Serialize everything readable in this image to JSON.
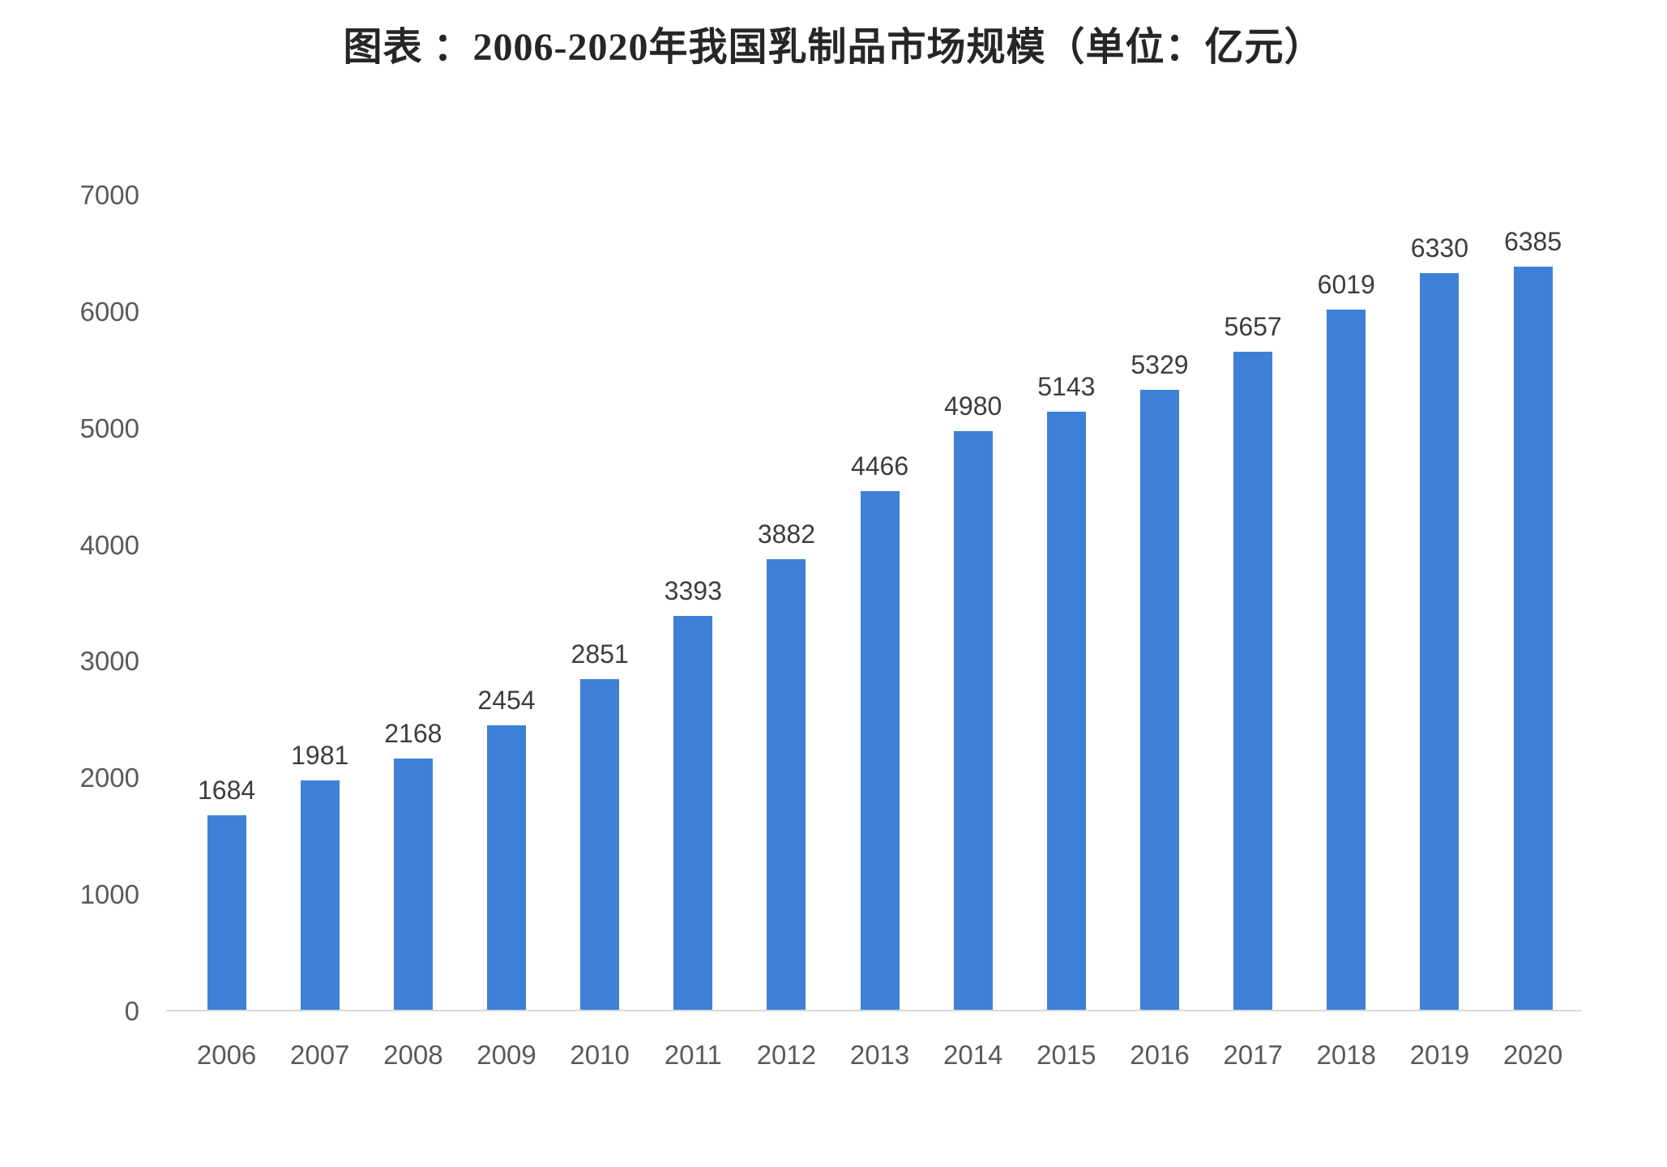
{
  "chart_data": {
    "type": "bar",
    "title": "图表 ：2006-2020年我国乳制品市场规模（单位：亿元）",
    "categories": [
      "2006",
      "2007",
      "2008",
      "2009",
      "2010",
      "2011",
      "2012",
      "2013",
      "2014",
      "2015",
      "2016",
      "2017",
      "2018",
      "2019",
      "2020"
    ],
    "values": [
      1684,
      1981,
      2168,
      2454,
      2851,
      3393,
      3882,
      4466,
      4980,
      5143,
      5329,
      5657,
      6019,
      6330,
      6385
    ],
    "unit": "亿元",
    "xlabel": "",
    "ylabel": "",
    "ylim": [
      0,
      7000
    ],
    "yticks": [
      0,
      1000,
      2000,
      3000,
      4000,
      5000,
      6000,
      7000
    ],
    "grid": false,
    "legend": false,
    "colors": {
      "bar": "#3e80d8",
      "title": "#262626",
      "value_label": "#3d3d3d",
      "axis_label": "#595959",
      "baseline": "#d9d9d9",
      "background": "#ffffff"
    }
  }
}
